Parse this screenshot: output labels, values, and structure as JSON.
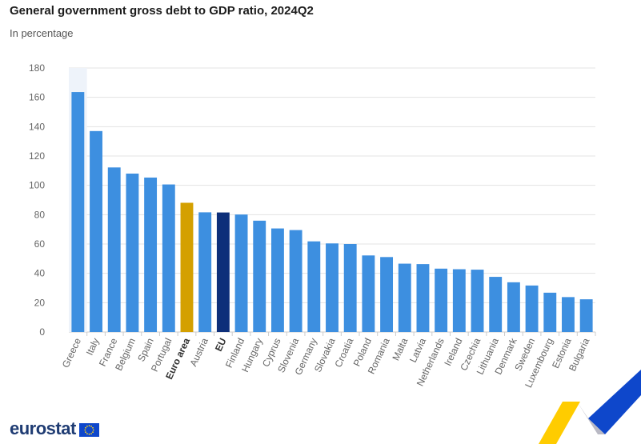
{
  "header": {
    "title": "General government gross debt to GDP ratio, 2024Q2",
    "subtitle": "In percentage"
  },
  "brand": {
    "name": "eurostat",
    "color": "#1f3c73"
  },
  "colors": {
    "country": "#3d8fe0",
    "euro_area": "#d4a000",
    "eu": "#0d2f7a",
    "highlight_band": "#eef3fa",
    "grid": "#e3e3e3",
    "axis_text": "#666666"
  },
  "chart_data": {
    "type": "bar",
    "title": "General government gross debt to GDP ratio, 2024Q2",
    "subtitle": "In percentage",
    "ylim": [
      0,
      180
    ],
    "yticks": [
      0,
      20,
      40,
      60,
      80,
      100,
      120,
      140,
      160,
      180
    ],
    "grid": true,
    "legend": "none",
    "categories": [
      "Greece",
      "Italy",
      "France",
      "Belgium",
      "Spain",
      "Portugal",
      "Euro area",
      "Austria",
      "EU",
      "Finland",
      "Hungary",
      "Cyprus",
      "Slovenia",
      "Germany",
      "Slovakia",
      "Croatia",
      "Poland",
      "Romania",
      "Malta",
      "Latvia",
      "Netherlands",
      "Ireland",
      "Czechia",
      "Lithuania",
      "Denmark",
      "Sweden",
      "Luxembourg",
      "Estonia",
      "Bulgaria"
    ],
    "values": [
      163.6,
      137.0,
      112.2,
      108.0,
      105.3,
      100.6,
      88.1,
      81.6,
      81.5,
      80.1,
      75.9,
      70.6,
      69.5,
      61.8,
      60.4,
      60.0,
      52.2,
      51.1,
      46.6,
      46.3,
      43.2,
      42.8,
      42.5,
      37.6,
      33.9,
      31.7,
      26.8,
      23.8,
      22.3
    ],
    "highlighted": [
      "Euro area",
      "EU"
    ],
    "hovered": "Greece"
  }
}
